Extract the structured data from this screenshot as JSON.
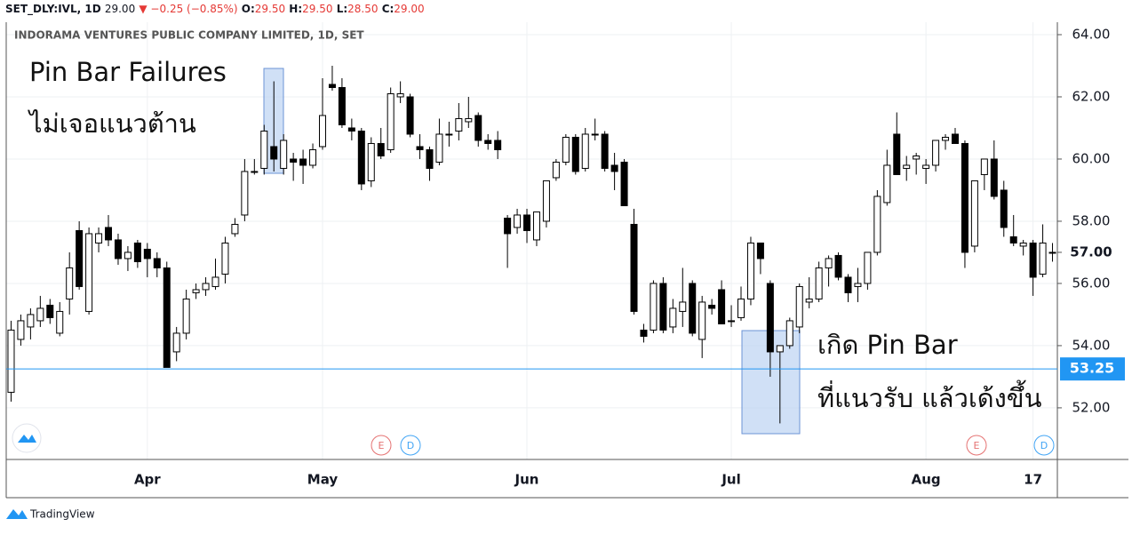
{
  "chart_data": {
    "type": "candlestick",
    "header": {
      "symbol": "SET_DLY:IVL, 1D",
      "last": "29.00",
      "change": "▼ −0.25 (−0.85%)",
      "open_label": "O:",
      "open": "29.50",
      "high_label": "H:",
      "high": "29.50",
      "low_label": "L:",
      "low": "28.50",
      "close_label": "C:",
      "close": "29.00"
    },
    "title": "INDORAMA VENTURES PUBLIC COMPANY LIMITED, 1D, SET",
    "annotations": [
      "Pin Bar Failures",
      "ไม่เจอแนวต้าน",
      "เกิด Pin Bar",
      "ที่แนวรับ แล้วเด้งขึ้น"
    ],
    "events": [
      {
        "label": "E",
        "color": "#e57373"
      },
      {
        "label": "D",
        "color": "#42a5f5"
      },
      {
        "label": "E",
        "color": "#e57373"
      },
      {
        "label": "D",
        "color": "#42a5f5"
      }
    ],
    "footer": "TradingView",
    "up_color": "#ffffff",
    "down_color": "#000000",
    "ylim": [
      50.34,
      64.4
    ],
    "yticks": [
      {
        "value": 52,
        "label": "52.00"
      },
      {
        "value": 54,
        "label": "54.00"
      },
      {
        "value": 56,
        "label": "56.00"
      },
      {
        "value": 58,
        "label": "58.00"
      },
      {
        "value": 60,
        "label": "60.00"
      },
      {
        "value": 62,
        "label": "62.00"
      },
      {
        "value": 64,
        "label": "64.00"
      }
    ],
    "level_label": {
      "value": 57,
      "label": "57.00"
    },
    "price_line": {
      "value": 53.25,
      "label": "53.25",
      "color": "#2196f3"
    },
    "grid": true,
    "categories": [
      null,
      null,
      null,
      null,
      null,
      null,
      null,
      null,
      null,
      null,
      null,
      null,
      null,
      null,
      "Apr",
      null,
      null,
      null,
      null,
      null,
      null,
      null,
      null,
      null,
      null,
      null,
      null,
      null,
      null,
      null,
      null,
      null,
      "May",
      null,
      null,
      null,
      null,
      null,
      null,
      null,
      null,
      null,
      null,
      null,
      null,
      null,
      null,
      null,
      null,
      null,
      null,
      null,
      null,
      "Jun",
      null,
      null,
      null,
      null,
      null,
      null,
      null,
      null,
      null,
      null,
      null,
      null,
      null,
      null,
      null,
      null,
      null,
      null,
      null,
      null,
      "Jul",
      null,
      null,
      null,
      null,
      null,
      null,
      null,
      null,
      null,
      null,
      null,
      null,
      null,
      null,
      null,
      null,
      null,
      null,
      null,
      "Aug",
      null,
      null,
      null,
      null,
      null,
      null,
      null,
      null,
      null,
      null,
      "17",
      null,
      null
    ],
    "open": [
      52.5,
      54.2,
      54.6,
      54.8,
      55.3,
      54.4,
      55.5,
      57.7,
      55.1,
      57.3,
      57.8,
      57.4,
      56.8,
      57.3,
      57.1,
      56.8,
      56.5,
      53.8,
      54.4,
      55.7,
      55.8,
      55.9,
      56.3,
      57.6,
      58.2,
      59.6,
      59.7,
      60.4,
      59.7,
      60.0,
      60.0,
      59.8,
      60.4,
      62.4,
      62.3,
      61.0,
      60.9,
      59.3,
      60.5,
      60.3,
      62.0,
      62.0,
      60.4,
      60.3,
      59.9,
      60.8,
      60.9,
      61.2,
      61.4,
      60.6,
      60.6,
      58.1,
      57.8,
      58.2,
      57.4,
      58.0,
      59.4,
      59.9,
      60.7,
      59.7,
      60.8,
      60.8,
      59.8,
      59.9,
      57.9,
      54.5,
      54.5,
      56.0,
      54.6,
      55.1,
      56.0,
      54.2,
      55.3,
      55.8,
      54.8,
      54.9,
      55.5,
      57.3,
      56.0,
      53.8,
      54.0,
      54.6,
      55.4,
      55.5,
      56.5,
      56.9,
      56.2,
      55.9,
      56.0,
      57.0,
      58.6,
      60.8,
      59.7,
      60.0,
      59.7,
      59.8,
      60.6,
      60.8,
      60.5,
      57.2,
      59.5,
      60.0,
      59.0,
      57.5,
      57.2,
      57.3,
      56.3,
      57.0
    ],
    "high": [
      54.8,
      55.0,
      55.2,
      55.6,
      55.5,
      55.4,
      57.0,
      58.0,
      57.8,
      57.8,
      58.2,
      57.6,
      57.2,
      57.4,
      57.3,
      57.0,
      56.7,
      54.6,
      55.8,
      56.0,
      56.2,
      56.8,
      57.5,
      58.1,
      60.0,
      60.0,
      61.1,
      62.5,
      60.8,
      60.2,
      60.3,
      60.5,
      62.6,
      63.0,
      62.6,
      61.3,
      61.0,
      60.7,
      61.0,
      62.3,
      62.5,
      62.1,
      60.8,
      60.4,
      61.3,
      61.2,
      61.8,
      62.0,
      61.5,
      60.8,
      60.9,
      58.2,
      58.4,
      58.4,
      58.3,
      59.3,
      60.0,
      60.8,
      60.8,
      61.0,
      61.3,
      60.9,
      60.2,
      60.0,
      58.4,
      54.7,
      56.1,
      56.2,
      55.5,
      56.5,
      56.1,
      55.6,
      55.5,
      56.1,
      55.3,
      55.9,
      57.5,
      57.3,
      56.1,
      54.0,
      54.9,
      56.0,
      56.2,
      56.7,
      56.9,
      57.0,
      56.3,
      56.5,
      57.0,
      59.0,
      60.3,
      61.5,
      60.1,
      60.2,
      60.0,
      60.6,
      60.8,
      61.0,
      60.6,
      59.3,
      60.0,
      60.6,
      59.3,
      58.2,
      57.4,
      57.4,
      57.9,
      57.3
    ],
    "low": [
      52.2,
      54.0,
      54.2,
      54.6,
      54.7,
      54.3,
      55.0,
      55.8,
      55.0,
      57.0,
      57.2,
      56.6,
      56.4,
      56.5,
      56.2,
      56.2,
      53.3,
      53.5,
      54.2,
      55.5,
      55.6,
      55.8,
      56.0,
      57.5,
      58.0,
      59.5,
      59.5,
      59.6,
      59.5,
      59.3,
      59.2,
      59.7,
      60.3,
      62.2,
      61.0,
      60.6,
      59.0,
      59.1,
      60.0,
      60.2,
      61.8,
      60.7,
      60.0,
      59.3,
      59.8,
      60.4,
      60.6,
      61.0,
      60.4,
      60.3,
      60.0,
      56.5,
      57.6,
      57.3,
      57.2,
      57.8,
      59.3,
      59.8,
      59.5,
      59.6,
      60.6,
      59.6,
      59.0,
      58.5,
      55.0,
      54.1,
      54.4,
      54.4,
      54.4,
      54.6,
      54.3,
      53.6,
      55.0,
      54.7,
      54.6,
      54.8,
      55.3,
      56.3,
      53.0,
      51.5,
      53.9,
      54.4,
      55.2,
      55.4,
      55.9,
      56.1,
      55.4,
      55.4,
      55.8,
      56.9,
      58.5,
      59.5,
      59.3,
      59.5,
      59.2,
      59.6,
      60.3,
      60.5,
      56.5,
      57.0,
      59.0,
      58.7,
      57.5,
      57.2,
      56.9,
      55.6,
      56.2,
      56.7
    ],
    "close": [
      54.5,
      54.8,
      55.0,
      55.2,
      54.9,
      55.1,
      56.5,
      55.9,
      57.6,
      57.6,
      57.4,
      56.8,
      57.0,
      56.7,
      56.8,
      56.5,
      53.3,
      54.4,
      55.5,
      55.8,
      56.0,
      56.2,
      57.3,
      57.9,
      59.6,
      59.6,
      60.9,
      60.0,
      60.6,
      59.9,
      59.8,
      60.3,
      61.4,
      62.3,
      61.1,
      60.9,
      59.2,
      60.5,
      60.1,
      62.1,
      62.1,
      60.8,
      60.3,
      59.7,
      60.8,
      60.8,
      61.3,
      61.3,
      60.6,
      60.5,
      60.3,
      57.6,
      58.2,
      57.7,
      58.3,
      59.3,
      59.9,
      60.7,
      59.6,
      60.8,
      60.8,
      59.7,
      59.6,
      58.5,
      55.1,
      54.3,
      56.0,
      54.5,
      55.2,
      55.4,
      54.4,
      55.4,
      55.2,
      54.7,
      54.8,
      55.5,
      57.3,
      56.8,
      53.8,
      54.0,
      54.8,
      55.9,
      55.5,
      56.5,
      56.8,
      56.2,
      55.7,
      56.0,
      57.0,
      58.8,
      59.8,
      59.5,
      59.8,
      60.1,
      59.8,
      60.6,
      60.7,
      60.5,
      57.0,
      59.3,
      60.0,
      58.8,
      57.8,
      57.3,
      57.3,
      56.2,
      57.3,
      57.0
    ]
  }
}
